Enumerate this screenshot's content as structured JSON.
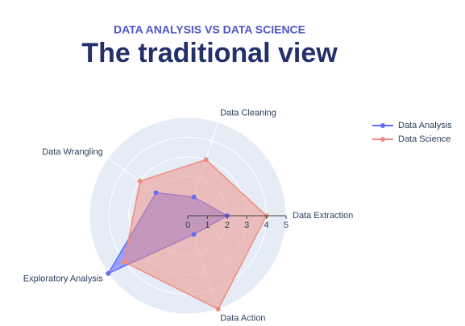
{
  "chart_data": {
    "type": "radar",
    "subtitle": "DATA ANALYSIS VS DATA SCIENCE",
    "title": "The traditional view",
    "categories": [
      "Data Extraction",
      "Data Cleaning",
      "Data Wrangling",
      "Exploratory Analysis",
      "Data Action"
    ],
    "series": [
      {
        "name": "Data Analysis",
        "color": "#636efa",
        "values": [
          2,
          1,
          2,
          5,
          1
        ]
      },
      {
        "name": "Data Science",
        "color": "#ef8c80",
        "values": [
          4,
          3,
          3,
          4,
          5
        ]
      }
    ],
    "rlim": [
      0,
      5
    ],
    "rticks": [
      0,
      1,
      2,
      3,
      4,
      5
    ],
    "grid": true,
    "legend": "top-right"
  }
}
